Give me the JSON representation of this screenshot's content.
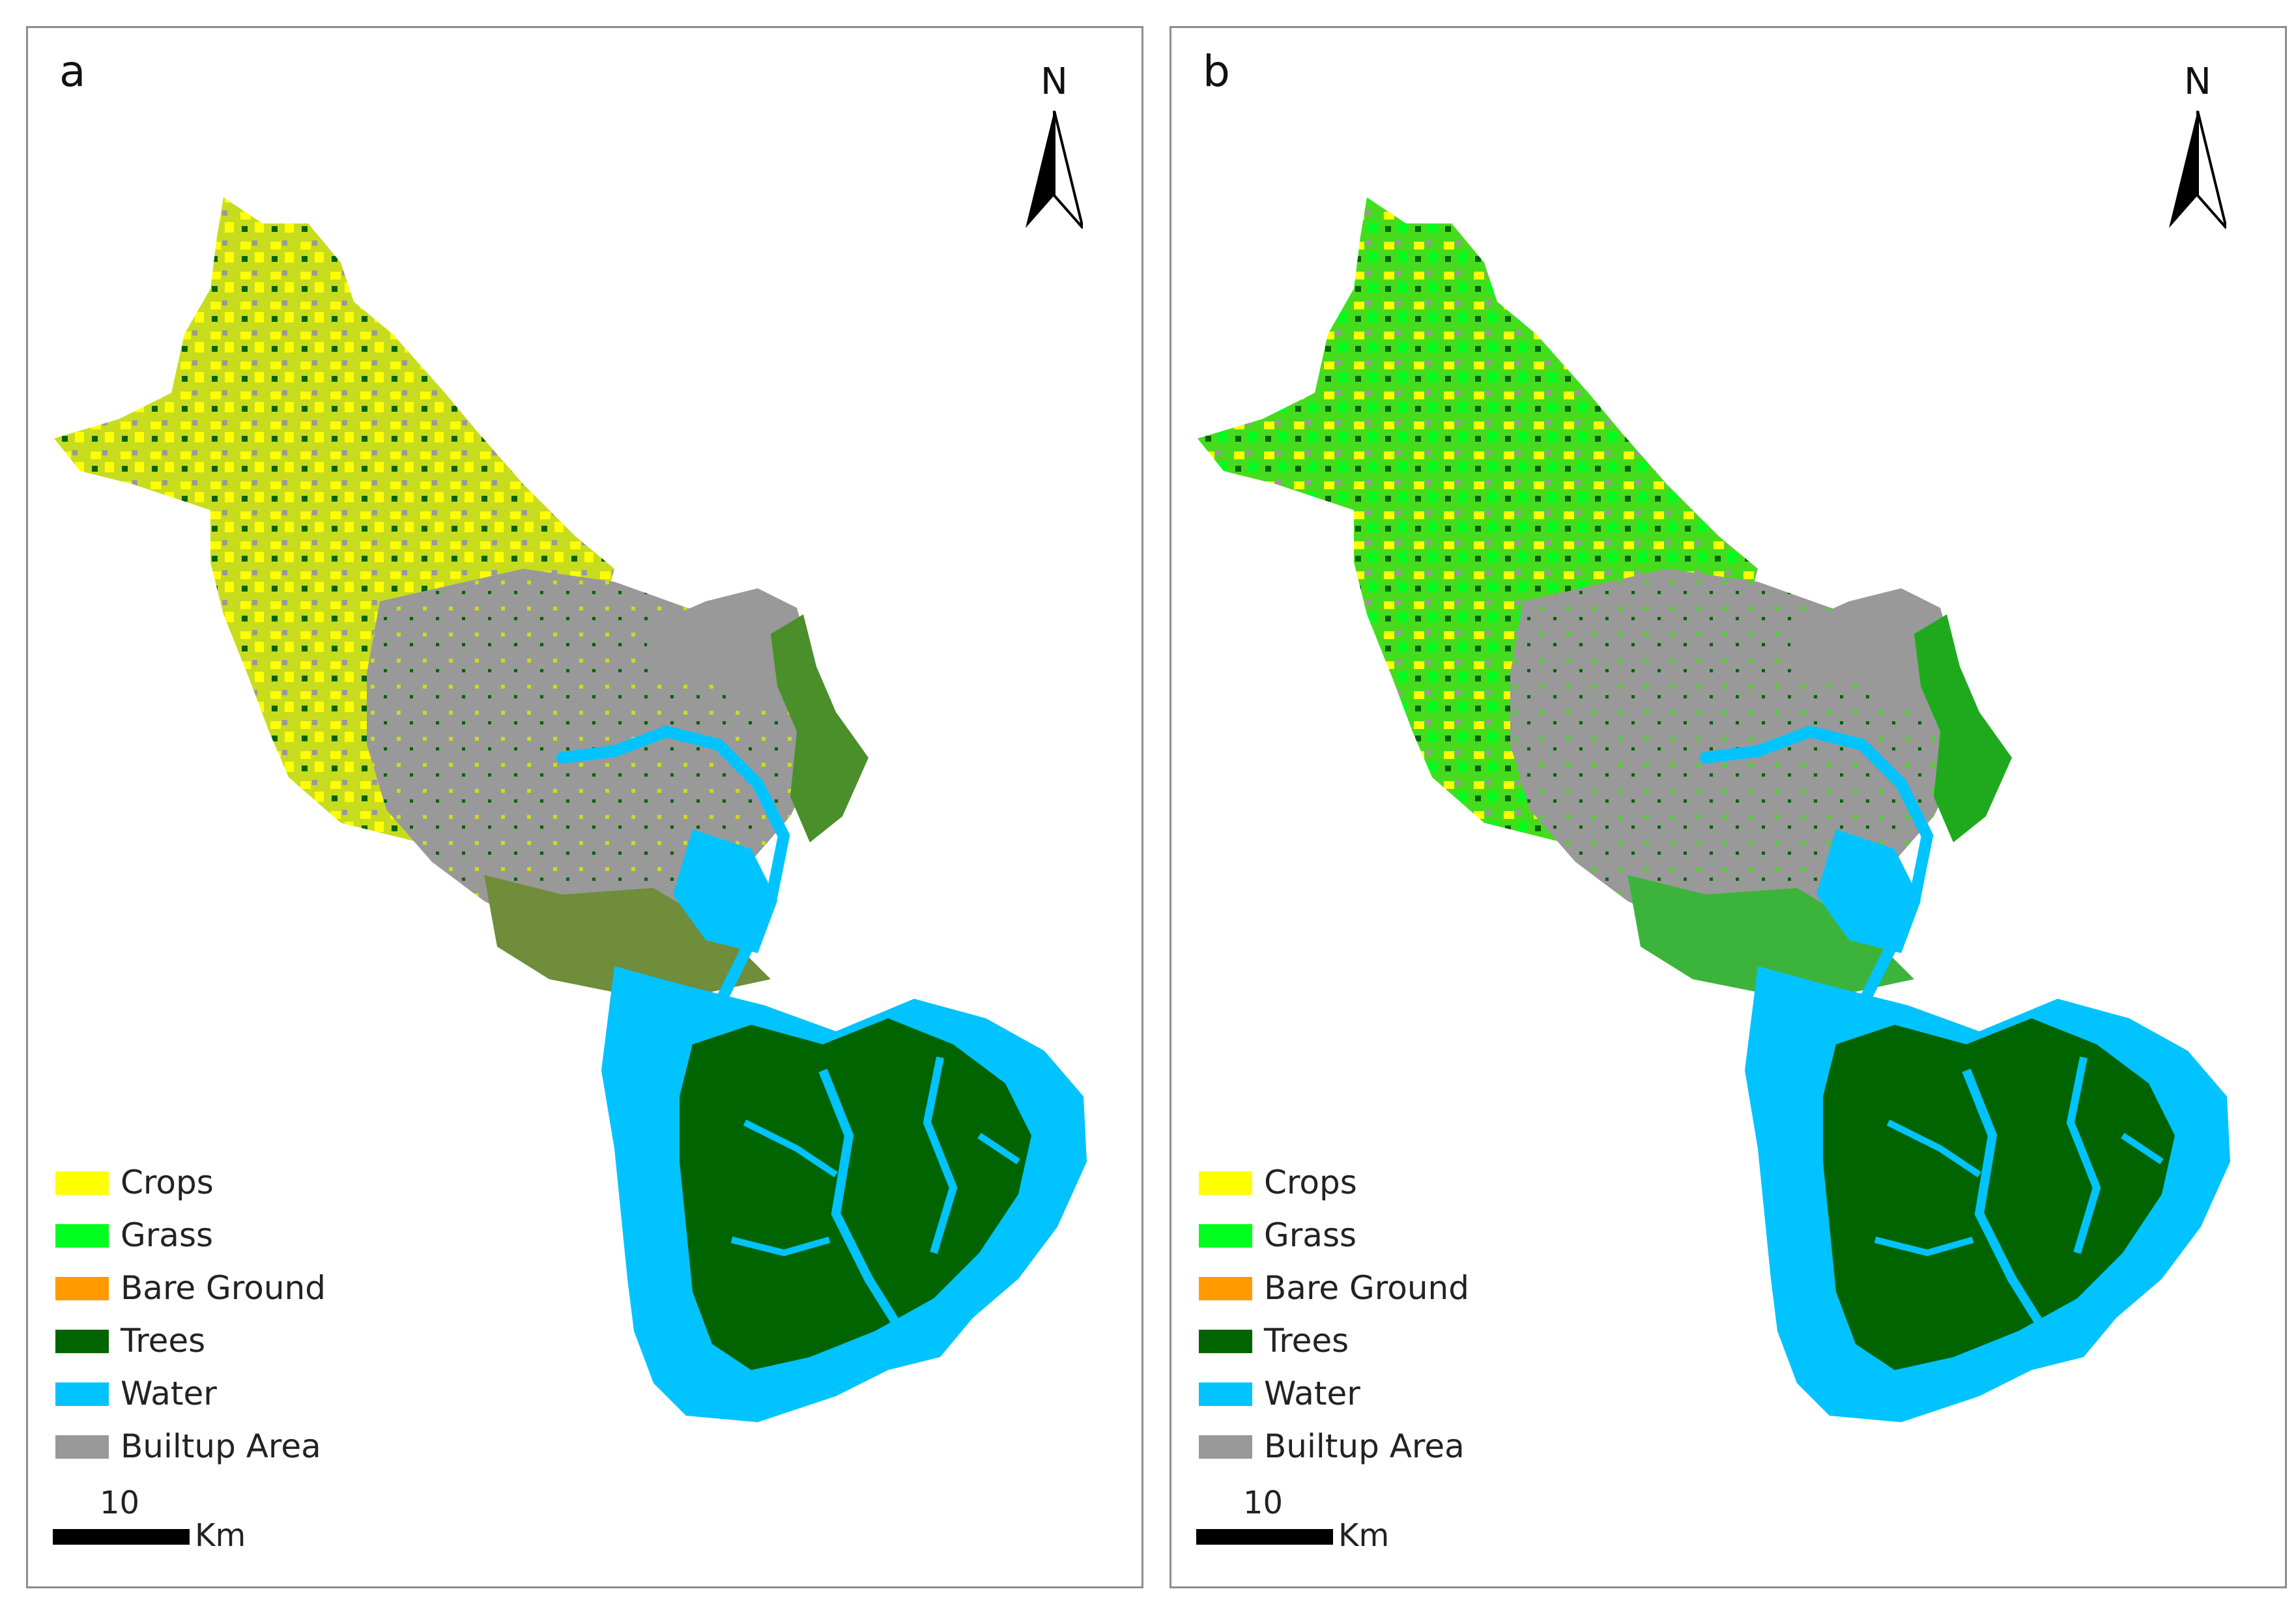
{
  "colors": {
    "crops": "#ffff00",
    "grass": "#00ff1e",
    "bare_ground": "#ff9b00",
    "trees": "#006400",
    "water": "#00c3ff",
    "builtup": "#999999",
    "mixed_a": "#c8dc1e",
    "mixed_b": "#46dc1e",
    "frame": "#8c8c8c"
  },
  "panels": [
    {
      "label": "a",
      "north": "N",
      "legend": [
        {
          "label": "Crops",
          "color": "#ffff00"
        },
        {
          "label": "Grass",
          "color": "#00ff1e"
        },
        {
          "label": "Bare Ground",
          "color": "#ff9b00"
        },
        {
          "label": "Trees",
          "color": "#006400"
        },
        {
          "label": "Water",
          "color": "#00c3ff"
        },
        {
          "label": "Builtup Area",
          "color": "#999999"
        }
      ],
      "scale": {
        "value": "10",
        "unit": "Km"
      }
    },
    {
      "label": "b",
      "north": "N",
      "legend": [
        {
          "label": "Crops",
          "color": "#ffff00"
        },
        {
          "label": "Grass",
          "color": "#00ff1e"
        },
        {
          "label": "Bare Ground",
          "color": "#ff9b00"
        },
        {
          "label": "Trees",
          "color": "#006400"
        },
        {
          "label": "Water",
          "color": "#00c3ff"
        },
        {
          "label": "Builtup Area",
          "color": "#999999"
        }
      ],
      "scale": {
        "value": "10",
        "unit": "Km"
      }
    }
  ]
}
